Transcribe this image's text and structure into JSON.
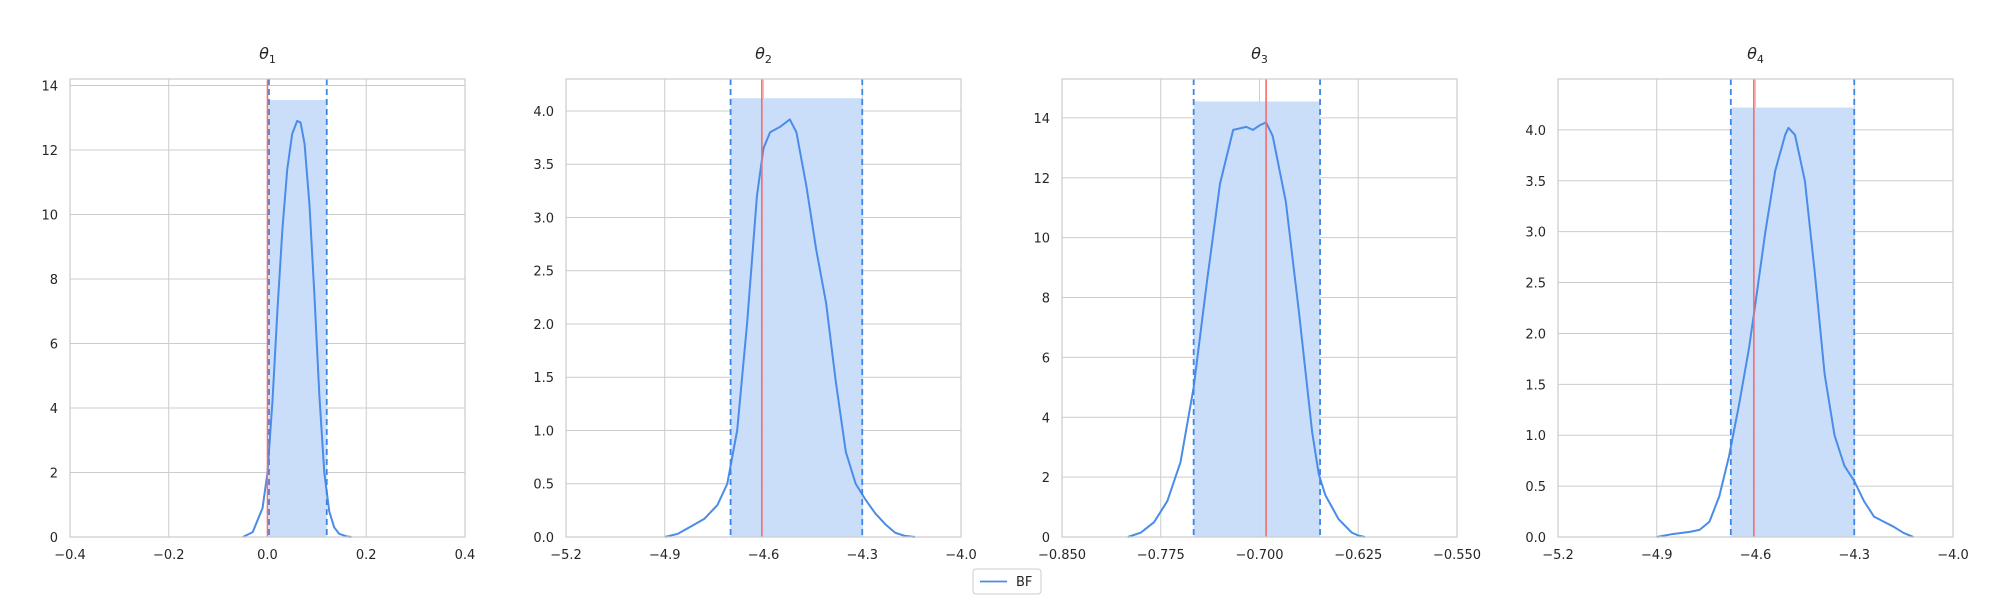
{
  "colors": {
    "density": "#4a8ce8",
    "band_fill": "#c7dcfa",
    "ci_line": "#3b86e6",
    "true_value": "#f26d6d",
    "grid": "#cccccc",
    "spine": "#cccccc",
    "text": "#262626"
  },
  "legend": {
    "label": "BF"
  },
  "chart_data": [
    {
      "type": "line",
      "title": "θ",
      "title_subscript": "1",
      "xlabel": "",
      "ylabel": "",
      "xlim": [
        -0.4,
        0.4
      ],
      "ylim": [
        0,
        14.2
      ],
      "xticks": [
        -0.4,
        -0.2,
        0.0,
        0.2,
        0.4
      ],
      "xtick_labels": [
        "−0.4",
        "−0.2",
        "0.0",
        "0.2",
        "0.4"
      ],
      "yticks": [
        0,
        2,
        4,
        6,
        8,
        10,
        12,
        14
      ],
      "ytick_labels": [
        "0",
        "2",
        "4",
        "6",
        "8",
        "10",
        "12",
        "14"
      ],
      "grid": true,
      "credible_interval": [
        0.003,
        0.12
      ],
      "band_height": 13.55,
      "true_value": 0.0,
      "series": [
        {
          "name": "BF",
          "x": [
            -0.05,
            -0.03,
            -0.01,
            0.0,
            0.01,
            0.02,
            0.03,
            0.04,
            0.05,
            0.06,
            0.067,
            0.075,
            0.085,
            0.095,
            0.105,
            0.115,
            0.125,
            0.135,
            0.145,
            0.16,
            0.17
          ],
          "y": [
            0.0,
            0.15,
            0.9,
            2.0,
            4.2,
            7.0,
            9.5,
            11.4,
            12.5,
            12.9,
            12.85,
            12.2,
            10.3,
            7.5,
            4.4,
            2.0,
            0.8,
            0.3,
            0.1,
            0.02,
            0.0
          ]
        }
      ]
    },
    {
      "type": "line",
      "title": "θ",
      "title_subscript": "2",
      "xlabel": "",
      "ylabel": "",
      "xlim": [
        -5.2,
        -4.0
      ],
      "ylim": [
        0,
        4.3
      ],
      "xticks": [
        -5.2,
        -4.9,
        -4.6,
        -4.3,
        -4.0
      ],
      "xtick_labels": [
        "−5.2",
        "−4.9",
        "−4.6",
        "−4.3",
        "−4.0"
      ],
      "yticks": [
        0.0,
        0.5,
        1.0,
        1.5,
        2.0,
        2.5,
        3.0,
        3.5,
        4.0
      ],
      "ytick_labels": [
        "0.0",
        "0.5",
        "1.0",
        "1.5",
        "2.0",
        "2.5",
        "3.0",
        "3.5",
        "4.0"
      ],
      "grid": true,
      "credible_interval": [
        -4.7,
        -4.3
      ],
      "band_height": 4.12,
      "true_value": -4.605,
      "series": [
        {
          "name": "BF",
          "x": [
            -4.9,
            -4.86,
            -4.82,
            -4.78,
            -4.74,
            -4.71,
            -4.68,
            -4.65,
            -4.62,
            -4.6,
            -4.58,
            -4.55,
            -4.52,
            -4.5,
            -4.47,
            -4.44,
            -4.41,
            -4.38,
            -4.35,
            -4.32,
            -4.29,
            -4.26,
            -4.23,
            -4.2,
            -4.17,
            -4.14
          ],
          "y": [
            0.0,
            0.03,
            0.1,
            0.17,
            0.3,
            0.5,
            1.0,
            2.0,
            3.2,
            3.65,
            3.8,
            3.85,
            3.92,
            3.8,
            3.3,
            2.7,
            2.2,
            1.45,
            0.8,
            0.5,
            0.35,
            0.22,
            0.12,
            0.04,
            0.01,
            0.0
          ]
        }
      ]
    },
    {
      "type": "line",
      "title": "θ",
      "title_subscript": "3",
      "xlabel": "",
      "ylabel": "",
      "xlim": [
        -0.85,
        -0.55
      ],
      "ylim": [
        0,
        15.3
      ],
      "xticks": [
        -0.85,
        -0.775,
        -0.7,
        -0.625,
        -0.55
      ],
      "xtick_labels": [
        "−0.850",
        "−0.775",
        "−0.700",
        "−0.625",
        "−0.550"
      ],
      "yticks": [
        0,
        2,
        4,
        6,
        8,
        10,
        12,
        14
      ],
      "ytick_labels": [
        "0",
        "2",
        "4",
        "6",
        "8",
        "10",
        "12",
        "14"
      ],
      "grid": true,
      "credible_interval": [
        -0.75,
        -0.654
      ],
      "band_height": 14.55,
      "true_value": -0.695,
      "series": [
        {
          "name": "BF",
          "x": [
            -0.8,
            -0.79,
            -0.78,
            -0.77,
            -0.76,
            -0.75,
            -0.74,
            -0.73,
            -0.72,
            -0.71,
            -0.705,
            -0.7,
            -0.695,
            -0.69,
            -0.68,
            -0.67,
            -0.66,
            -0.655,
            -0.65,
            -0.64,
            -0.63,
            -0.625,
            -0.62
          ],
          "y": [
            0.0,
            0.15,
            0.5,
            1.2,
            2.5,
            5.0,
            8.5,
            11.8,
            13.6,
            13.7,
            13.6,
            13.75,
            13.85,
            13.4,
            11.2,
            7.5,
            3.5,
            2.1,
            1.4,
            0.6,
            0.15,
            0.05,
            0.0
          ]
        }
      ]
    },
    {
      "type": "line",
      "title": "θ",
      "title_subscript": "4",
      "xlabel": "",
      "ylabel": "",
      "xlim": [
        -5.2,
        -4.0
      ],
      "ylim": [
        0,
        4.5
      ],
      "xticks": [
        -5.2,
        -4.9,
        -4.6,
        -4.3,
        -4.0
      ],
      "xtick_labels": [
        "−5.2",
        "−4.9",
        "−4.6",
        "−4.3",
        "−4.0"
      ],
      "yticks": [
        0.0,
        0.5,
        1.0,
        1.5,
        2.0,
        2.5,
        3.0,
        3.5,
        4.0
      ],
      "ytick_labels": [
        "0.0",
        "0.5",
        "1.0",
        "1.5",
        "2.0",
        "2.5",
        "3.0",
        "3.5",
        "4.0"
      ],
      "grid": true,
      "credible_interval": [
        -4.675,
        -4.3
      ],
      "band_height": 4.22,
      "true_value": -4.605,
      "series": [
        {
          "name": "BF",
          "x": [
            -4.9,
            -4.85,
            -4.8,
            -4.77,
            -4.74,
            -4.71,
            -4.68,
            -4.65,
            -4.62,
            -4.6,
            -4.57,
            -4.54,
            -4.51,
            -4.5,
            -4.48,
            -4.45,
            -4.42,
            -4.39,
            -4.36,
            -4.33,
            -4.3,
            -4.27,
            -4.24,
            -4.21,
            -4.18,
            -4.15,
            -4.12
          ],
          "y": [
            0.0,
            0.03,
            0.05,
            0.07,
            0.15,
            0.4,
            0.8,
            1.3,
            1.85,
            2.3,
            3.0,
            3.6,
            3.95,
            4.02,
            3.95,
            3.5,
            2.6,
            1.6,
            1.0,
            0.7,
            0.55,
            0.35,
            0.2,
            0.15,
            0.1,
            0.04,
            0.0
          ]
        }
      ]
    }
  ]
}
